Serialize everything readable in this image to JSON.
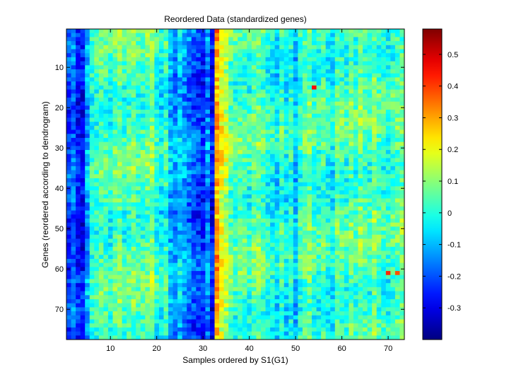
{
  "chart_data": {
    "type": "heatmap",
    "title": "Reordered Data (standardized genes)",
    "xlabel": "Samples ordered by S1(G1)",
    "ylabel": "Genes (reordered according to dendrogram)",
    "n_cols": 73,
    "n_rows": 77,
    "xlim": [
      0.5,
      73.5
    ],
    "ylim": [
      0.5,
      77.5
    ],
    "x_ticks": [
      10,
      20,
      30,
      40,
      50,
      60,
      70
    ],
    "y_ticks": [
      10,
      20,
      30,
      40,
      50,
      60,
      70
    ],
    "y_direction": "reverse",
    "colormap": "jet",
    "clim": [
      -0.4,
      0.58
    ],
    "colorbar_ticks": [
      -0.3,
      -0.2,
      -0.1,
      0,
      0.1,
      0.2,
      0.3,
      0.4,
      0.5
    ],
    "colorbar_tick_labels": [
      "-0.3",
      "-0.2",
      "-0.1",
      "0",
      "0.1",
      "0.2",
      "0.3",
      "0.4",
      "0.5"
    ],
    "x_tick_labels": [
      "10",
      "20",
      "30",
      "40",
      "50",
      "60",
      "70"
    ],
    "y_tick_labels": [
      "10",
      "20",
      "30",
      "40",
      "50",
      "60",
      "70"
    ],
    "column_means": [
      -0.22,
      -0.18,
      -0.26,
      -0.28,
      -0.12,
      0.0,
      0.02,
      0.04,
      0.03,
      0.01,
      0.06,
      0.08,
      0.02,
      0.05,
      0.07,
      0.03,
      0.04,
      0.06,
      0.09,
      0.0,
      -0.03,
      0.02,
      -0.1,
      -0.14,
      -0.08,
      -0.12,
      -0.16,
      -0.2,
      -0.22,
      -0.24,
      -0.15,
      -0.28,
      0.3,
      0.2,
      0.15,
      0.06,
      0.03,
      0.05,
      0.04,
      0.02,
      0.06,
      0.08,
      0.04,
      0.0,
      -0.02,
      -0.05,
      0.03,
      -0.04,
      0.01,
      -0.08,
      0.02,
      0.05,
      0.08,
      0.02,
      0.01,
      0.05,
      0.0,
      -0.03,
      0.06,
      0.04,
      0.02,
      0.07,
      0.03,
      0.08,
      0.05,
      0.03,
      0.09,
      0.04,
      0.02,
      0.0,
      0.03,
      0.06,
      0.08
    ],
    "hotspots": [
      {
        "col": 33,
        "row": 31,
        "value": 0.32
      },
      {
        "col": 33,
        "row": 33,
        "value": 0.35
      },
      {
        "col": 54,
        "row": 15,
        "value": 0.45
      },
      {
        "col": 70,
        "row": 61,
        "value": 0.42
      },
      {
        "col": 72,
        "row": 61,
        "value": 0.38
      },
      {
        "col": 33,
        "row": 61,
        "value": 0.3
      }
    ]
  }
}
